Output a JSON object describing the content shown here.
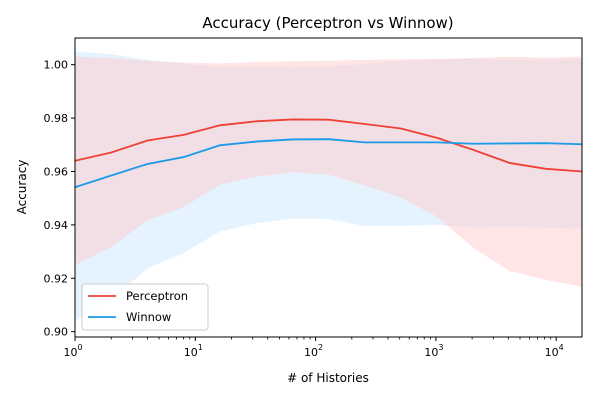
{
  "chart_data": {
    "type": "line",
    "title": "Accuracy (Perceptron vs Winnow)",
    "xlabel": "# of Histories",
    "ylabel": "Accuracy",
    "xscale": "log",
    "xlim": [
      1,
      16384
    ],
    "ylim": [
      0.898,
      1.01
    ],
    "x_ticks": [
      {
        "value": 1,
        "base": "10",
        "exp": "0"
      },
      {
        "value": 10,
        "base": "10",
        "exp": "1"
      },
      {
        "value": 100,
        "base": "10",
        "exp": "2"
      },
      {
        "value": 1000,
        "base": "10",
        "exp": "3"
      },
      {
        "value": 10000,
        "base": "10",
        "exp": "4"
      }
    ],
    "y_ticks": [
      {
        "value": 0.9,
        "label": "0.90"
      },
      {
        "value": 0.92,
        "label": "0.92"
      },
      {
        "value": 0.94,
        "label": "0.94"
      },
      {
        "value": 0.96,
        "label": "0.96"
      },
      {
        "value": 0.98,
        "label": "0.98"
      },
      {
        "value": 1.0,
        "label": "1.00"
      }
    ],
    "grid": false,
    "legend_position": "lower-left",
    "x": [
      1,
      2,
      4,
      8,
      16,
      32,
      64,
      128,
      256,
      512,
      1024,
      2048,
      4096,
      8192,
      16384
    ],
    "series": [
      {
        "name": "Perceptron",
        "color": "#ef4136",
        "band_color": "#ffcccc",
        "values": [
          0.964,
          0.9671,
          0.9716,
          0.9737,
          0.9773,
          0.9788,
          0.9795,
          0.9794,
          0.9778,
          0.9761,
          0.9726,
          0.9681,
          0.9632,
          0.961,
          0.96
        ],
        "upper": [
          1.003,
          1.0025,
          1.0015,
          1.0008,
          1.0005,
          1.001,
          1.0013,
          1.0015,
          1.0018,
          1.002,
          1.0022,
          1.0025,
          1.003,
          1.0027,
          1.003
        ],
        "lower": [
          0.925,
          0.9317,
          0.9417,
          0.9466,
          0.9551,
          0.958,
          0.9597,
          0.9588,
          0.9548,
          0.9502,
          0.943,
          0.9314,
          0.9227,
          0.9194,
          0.9168
        ]
      },
      {
        "name": "Winnow",
        "color": "#1b9be7",
        "band_color": "#cce8ff",
        "values": [
          0.9541,
          0.9585,
          0.9628,
          0.9654,
          0.9698,
          0.9712,
          0.972,
          0.9721,
          0.9709,
          0.9709,
          0.9709,
          0.9704,
          0.9705,
          0.9706,
          0.9702
        ],
        "upper": [
          1.005,
          1.004,
          1.0018,
          1.0003,
          0.9993,
          0.9992,
          0.999,
          0.9994,
          1.0002,
          1.0015,
          1.002,
          1.0022,
          1.002,
          1.002,
          1.0022
        ],
        "lower": [
          0.904,
          0.912,
          0.9237,
          0.9295,
          0.9375,
          0.9406,
          0.9424,
          0.9422,
          0.9396,
          0.9397,
          0.94,
          0.939,
          0.9392,
          0.939,
          0.9384
        ]
      }
    ]
  }
}
